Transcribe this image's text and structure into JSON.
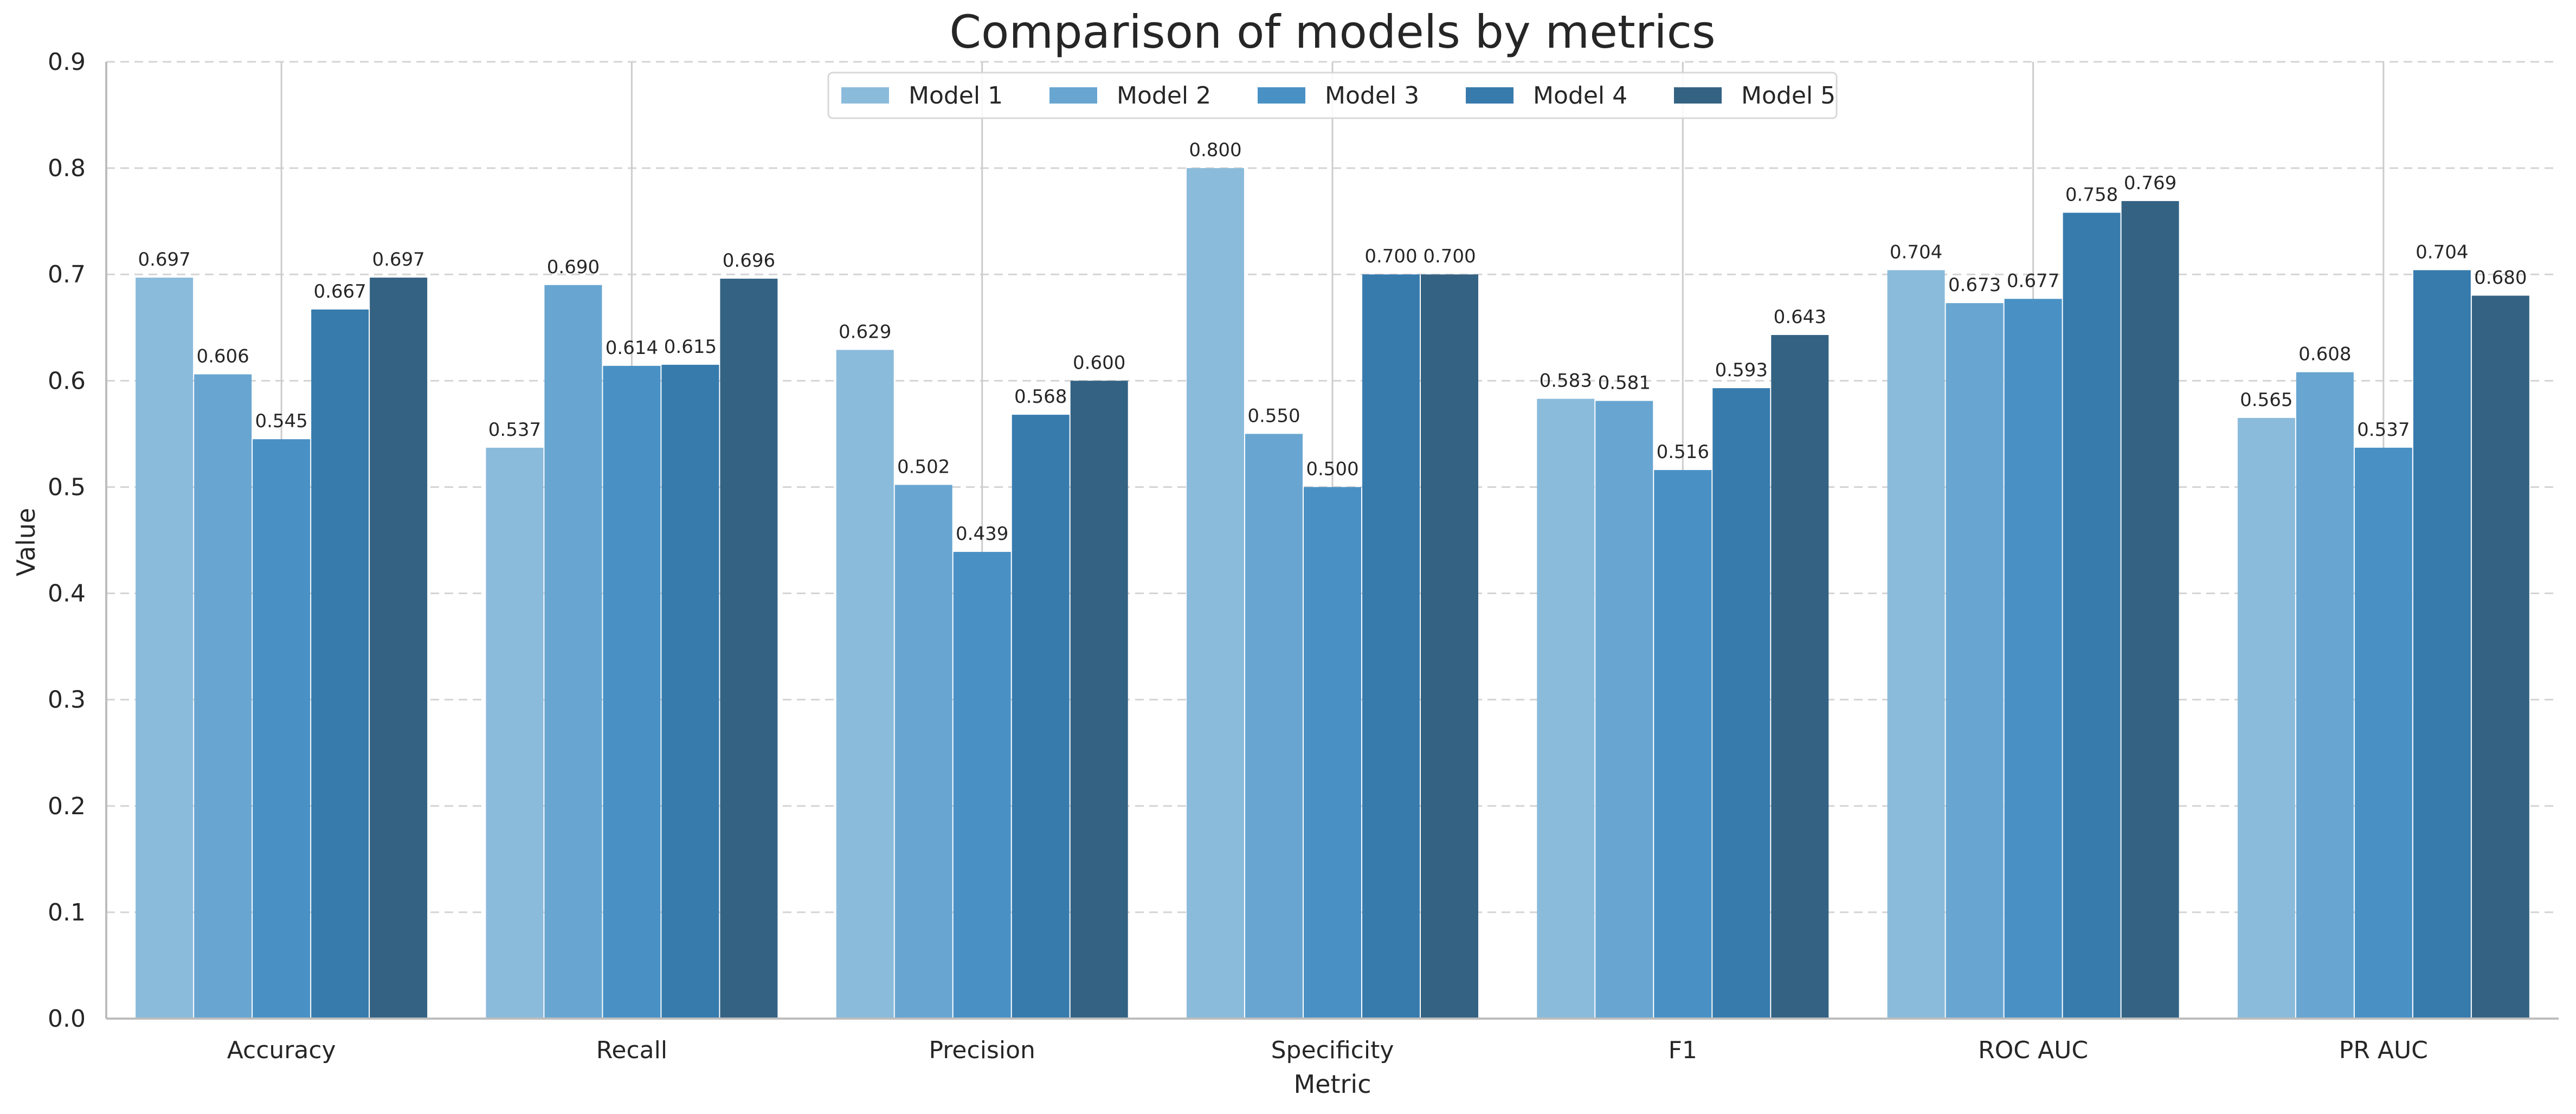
{
  "chart_data": {
    "type": "bar",
    "title": "Comparison of models by metrics",
    "xlabel": "Metric",
    "ylabel": "Value",
    "ylim": [
      0,
      0.9
    ],
    "yticks": [
      0.0,
      0.1,
      0.2,
      0.3,
      0.4,
      0.5,
      0.6,
      0.7,
      0.8,
      0.9
    ],
    "ytick_labels": [
      "0.0",
      "0.1",
      "0.2",
      "0.3",
      "0.4",
      "0.5",
      "0.6",
      "0.7",
      "0.8",
      "0.9"
    ],
    "grid": {
      "y": true,
      "style": "dashed"
    },
    "legend": {
      "placement": "top-center",
      "ncol": 5
    },
    "categories": [
      "Accuracy",
      "Recall",
      "Precision",
      "Specificity",
      "F1",
      "ROC AUC",
      "PR AUC"
    ],
    "series": [
      {
        "name": "Model 1",
        "color": "#8bbbdb",
        "values": [
          0.697,
          0.537,
          0.629,
          0.8,
          0.583,
          0.704,
          0.565
        ],
        "labels": [
          "0.697",
          "0.537",
          "0.629",
          "0.800",
          "0.583",
          "0.704",
          "0.565"
        ]
      },
      {
        "name": "Model 2",
        "color": "#68a6d1",
        "values": [
          0.606,
          0.69,
          0.502,
          0.55,
          0.581,
          0.673,
          0.608
        ],
        "labels": [
          "0.606",
          "0.690",
          "0.502",
          "0.550",
          "0.581",
          "0.673",
          "0.608"
        ]
      },
      {
        "name": "Model 3",
        "color": "#4991c5",
        "values": [
          0.545,
          0.614,
          0.439,
          0.5,
          0.516,
          0.677,
          0.537
        ],
        "labels": [
          "0.545",
          "0.614",
          "0.439",
          "0.500",
          "0.516",
          "0.677",
          "0.537"
        ]
      },
      {
        "name": "Model 4",
        "color": "#377bad",
        "values": [
          0.667,
          0.615,
          0.568,
          0.7,
          0.593,
          0.758,
          0.704
        ],
        "labels": [
          "0.667",
          "0.615",
          "0.568",
          "0.700",
          "0.593",
          "0.758",
          "0.704"
        ]
      },
      {
        "name": "Model 5",
        "color": "#346283",
        "values": [
          0.697,
          0.696,
          0.6,
          0.7,
          0.643,
          0.769,
          0.68
        ],
        "labels": [
          "0.697",
          "0.696",
          "0.600",
          "0.700",
          "0.643",
          "0.769",
          "0.680"
        ]
      }
    ]
  }
}
